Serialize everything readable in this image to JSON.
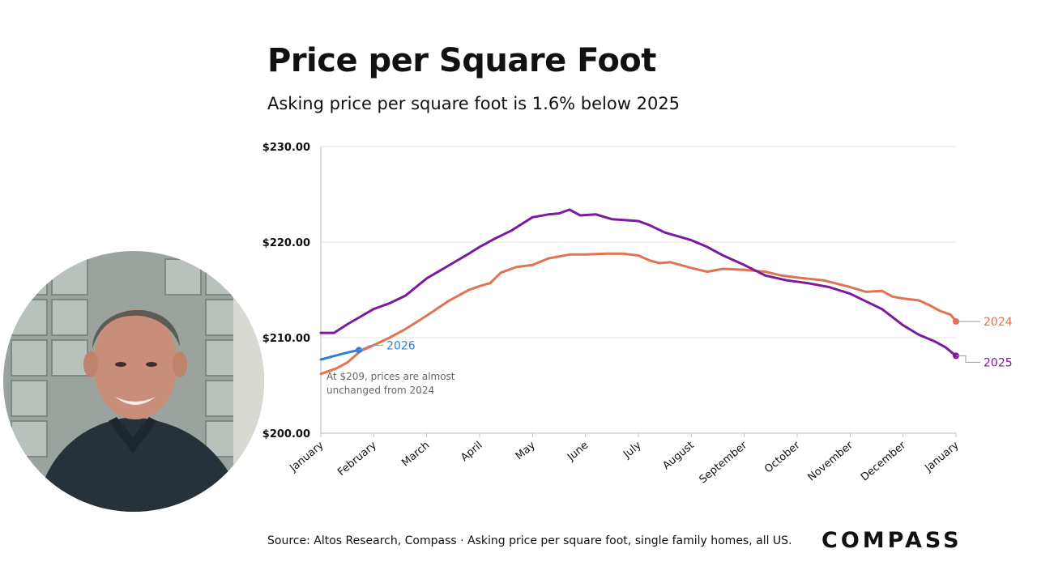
{
  "title": "Price per Square Foot",
  "subtitle": "Asking price per square foot is 1.6% below 2025",
  "source": "Source: Altos Research, Compass · Asking price per square foot, single family homes, all US.",
  "logo": "COMPASS",
  "presenter_icon": "presenter-video-avatar",
  "chart_data": {
    "type": "line",
    "x_labels": [
      "January",
      "February",
      "March",
      "April",
      "May",
      "June",
      "July",
      "August",
      "September",
      "October",
      "November",
      "December",
      "January"
    ],
    "y_ticks": [
      "$200.00",
      "$210.00",
      "$220.00",
      "$230.00"
    ],
    "ylim": [
      200,
      230
    ],
    "xlim": [
      0,
      12
    ],
    "grid": true,
    "series": [
      {
        "name": "2024",
        "color": "#e07351",
        "points": [
          [
            0,
            206.2
          ],
          [
            0.3,
            206.8
          ],
          [
            0.5,
            207.4
          ],
          [
            0.75,
            208.6
          ],
          [
            1,
            209.2
          ],
          [
            1.3,
            210.0
          ],
          [
            1.6,
            210.9
          ],
          [
            2,
            212.3
          ],
          [
            2.4,
            213.8
          ],
          [
            2.8,
            215.0
          ],
          [
            3,
            215.4
          ],
          [
            3.2,
            215.7
          ],
          [
            3.4,
            216.8
          ],
          [
            3.7,
            217.4
          ],
          [
            4,
            217.6
          ],
          [
            4.3,
            218.3
          ],
          [
            4.7,
            218.7
          ],
          [
            5,
            218.7
          ],
          [
            5.4,
            218.8
          ],
          [
            5.7,
            218.8
          ],
          [
            6,
            218.6
          ],
          [
            6.2,
            218.1
          ],
          [
            6.4,
            217.8
          ],
          [
            6.6,
            217.9
          ],
          [
            6.8,
            217.6
          ],
          [
            7,
            217.3
          ],
          [
            7.3,
            216.9
          ],
          [
            7.6,
            217.2
          ],
          [
            8,
            217.1
          ],
          [
            8.4,
            216.9
          ],
          [
            8.7,
            216.5
          ],
          [
            9,
            216.3
          ],
          [
            9.5,
            216.0
          ],
          [
            10,
            215.3
          ],
          [
            10.3,
            214.8
          ],
          [
            10.6,
            214.9
          ],
          [
            10.8,
            214.3
          ],
          [
            11,
            214.1
          ],
          [
            11.3,
            213.9
          ],
          [
            11.5,
            213.4
          ],
          [
            11.7,
            212.8
          ],
          [
            11.9,
            212.4
          ],
          [
            12,
            211.7
          ]
        ],
        "label_end": "2024"
      },
      {
        "name": "2025",
        "color": "#7b1a9e",
        "points": [
          [
            0,
            210.5
          ],
          [
            0.25,
            210.5
          ],
          [
            0.5,
            211.4
          ],
          [
            1,
            213.0
          ],
          [
            1.3,
            213.6
          ],
          [
            1.6,
            214.4
          ],
          [
            2,
            216.2
          ],
          [
            2.4,
            217.5
          ],
          [
            2.8,
            218.8
          ],
          [
            3,
            219.5
          ],
          [
            3.3,
            220.4
          ],
          [
            3.6,
            221.2
          ],
          [
            4,
            222.6
          ],
          [
            4.3,
            222.9
          ],
          [
            4.5,
            223.0
          ],
          [
            4.7,
            223.4
          ],
          [
            4.9,
            222.8
          ],
          [
            5.2,
            222.9
          ],
          [
            5.5,
            222.4
          ],
          [
            6,
            222.2
          ],
          [
            6.2,
            221.8
          ],
          [
            6.5,
            221.0
          ],
          [
            7,
            220.2
          ],
          [
            7.3,
            219.5
          ],
          [
            7.6,
            218.6
          ],
          [
            8,
            217.6
          ],
          [
            8.4,
            216.5
          ],
          [
            8.8,
            216.0
          ],
          [
            9.2,
            215.7
          ],
          [
            9.6,
            215.3
          ],
          [
            10,
            214.6
          ],
          [
            10.3,
            213.8
          ],
          [
            10.6,
            213.0
          ],
          [
            11,
            211.3
          ],
          [
            11.3,
            210.3
          ],
          [
            11.6,
            209.6
          ],
          [
            11.8,
            209.0
          ],
          [
            12,
            208.1
          ]
        ],
        "label_end": "2025"
      },
      {
        "name": "2026",
        "color": "#2f7fd8",
        "points": [
          [
            0,
            207.7
          ],
          [
            0.2,
            208.0
          ],
          [
            0.4,
            208.3
          ],
          [
            0.55,
            208.5
          ],
          [
            0.72,
            208.7
          ]
        ],
        "label_end": "2026"
      }
    ],
    "annotation": "At $209, prices are almost unchanged from 2024"
  }
}
